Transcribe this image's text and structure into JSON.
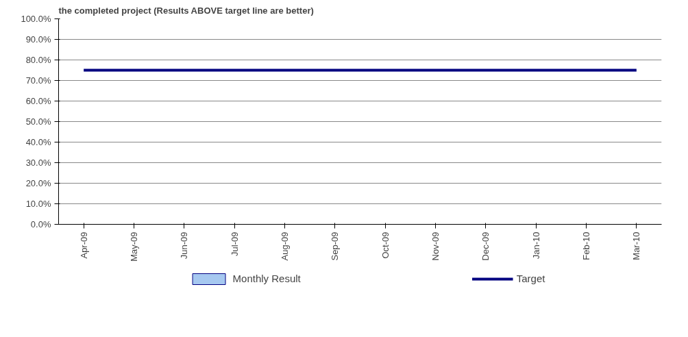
{
  "chart_data": {
    "type": "bar",
    "title": "the completed project (Results ABOVE target line are better)",
    "categories": [
      "Apr-09",
      "May-09",
      "Jun-09",
      "Jul-09",
      "Aug-09",
      "Sep-09",
      "Oct-09",
      "Nov-09",
      "Dec-09",
      "Jan-10",
      "Feb-10",
      "Mar-10"
    ],
    "series": [
      {
        "name": "Monthly Result",
        "type": "bar",
        "color": "#a6c8f0",
        "values": [
          null,
          null,
          null,
          null,
          null,
          null,
          null,
          null,
          null,
          null,
          null,
          null
        ]
      },
      {
        "name": "Target",
        "type": "line",
        "color": "#000080",
        "values": [
          75,
          75,
          75,
          75,
          75,
          75,
          75,
          75,
          75,
          75,
          75,
          75
        ]
      }
    ],
    "ylim": [
      0,
      100
    ],
    "yticks": [
      {
        "value": 0,
        "label": "0.0%"
      },
      {
        "value": 10,
        "label": "10.0%"
      },
      {
        "value": 20,
        "label": "20.0%"
      },
      {
        "value": 30,
        "label": "30.0%"
      },
      {
        "value": 40,
        "label": "40.0%"
      },
      {
        "value": 50,
        "label": "50.0%"
      },
      {
        "value": 60,
        "label": "60.0%"
      },
      {
        "value": 70,
        "label": "70.0%"
      },
      {
        "value": 80,
        "label": "80.0%"
      },
      {
        "value": 90,
        "label": "90.0%"
      },
      {
        "value": 100,
        "label": "100.0%"
      }
    ],
    "grid": "y",
    "legend": "bottom"
  }
}
